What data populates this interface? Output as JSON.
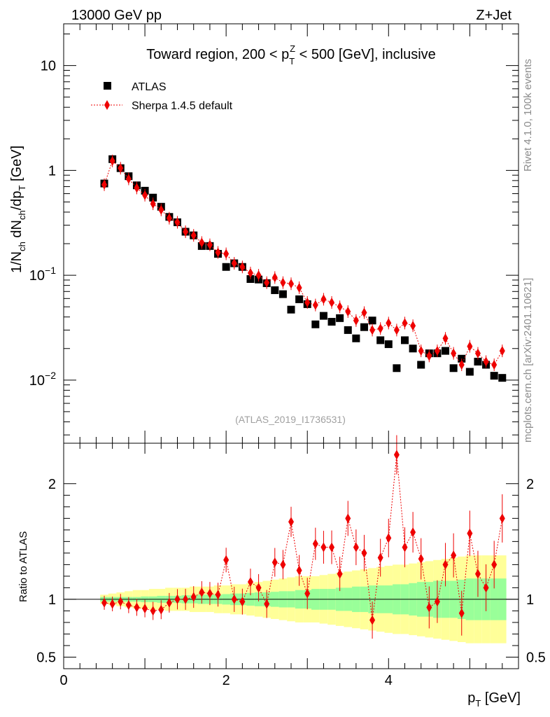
{
  "header": {
    "energy_label": "13000 GeV pp",
    "process_label": "Z+Jet",
    "analysis_id": "(ATLAS_2019_I1736531)",
    "rivet_label": "Rivet 4.1.0,  100k events",
    "mcplots_label": "mcplots.cern.ch [arXiv:2401.10621]"
  },
  "chart_data": [
    {
      "type": "scatter",
      "title": "Toward region, 200 < p_T^Z < 500 [GeV], inclusive",
      "title_parts": {
        "pre": "Toward region, 200 < p",
        "sub": "T",
        "sup": "Z",
        "post": " < 500 [GeV], inclusive"
      },
      "ylabel": "1/N_ch dN_ch/dp_T [GeV]",
      "ylabel_parts": {
        "a": "1/N",
        "a_sub": "ch",
        "b": " dN",
        "b_sub": "ch",
        "c": "/dp",
        "c_sub": "T",
        "d": " [GeV]"
      },
      "yscale": "log",
      "ylim": [
        0.0025,
        25
      ],
      "xlim": [
        0,
        5.6
      ],
      "yticks": [
        {
          "value": 10,
          "label": "10"
        },
        {
          "value": 1,
          "label": "1"
        },
        {
          "value": 0.1,
          "label": "10",
          "exp": "−1"
        },
        {
          "value": 0.01,
          "label": "10",
          "exp": "−2"
        }
      ],
      "legend": {
        "position": "top-left",
        "entries": [
          {
            "name": "ATLAS",
            "marker": "square",
            "color": "#000000"
          },
          {
            "name": "Sherpa 1.4.5 default",
            "marker": "diamond",
            "color": "#ee0000"
          }
        ]
      },
      "x": [
        0.5,
        0.6,
        0.7,
        0.8,
        0.9,
        1.0,
        1.1,
        1.2,
        1.3,
        1.4,
        1.5,
        1.6,
        1.7,
        1.8,
        1.9,
        2.0,
        2.1,
        2.2,
        2.3,
        2.4,
        2.5,
        2.6,
        2.7,
        2.8,
        2.9,
        3.0,
        3.1,
        3.2,
        3.3,
        3.4,
        3.5,
        3.6,
        3.7,
        3.8,
        3.9,
        4.0,
        4.1,
        4.2,
        4.3,
        4.4,
        4.5,
        4.6,
        4.7,
        4.8,
        4.9,
        5.0,
        5.1,
        5.2,
        5.3,
        5.4
      ],
      "series": [
        {
          "name": "ATLAS",
          "values": [
            0.75,
            1.28,
            1.05,
            0.88,
            0.72,
            0.64,
            0.55,
            0.45,
            0.36,
            0.32,
            0.26,
            0.24,
            0.19,
            0.19,
            0.16,
            0.12,
            0.13,
            0.12,
            0.092,
            0.091,
            0.084,
            0.072,
            0.066,
            0.047,
            0.059,
            0.053,
            0.034,
            0.041,
            0.036,
            0.039,
            0.03,
            0.025,
            0.032,
            0.037,
            0.024,
            0.022,
            0.013,
            0.024,
            0.02,
            0.014,
            0.018,
            0.018,
            0.019,
            0.013,
            0.016,
            0.012,
            0.015,
            0.014,
            0.011,
            0.0105
          ]
        },
        {
          "name": "Sherpa 1.4.5 default",
          "values": [
            0.73,
            1.23,
            1.05,
            0.83,
            0.68,
            0.58,
            0.48,
            0.42,
            0.35,
            0.32,
            0.26,
            0.24,
            0.205,
            0.195,
            0.165,
            0.16,
            0.13,
            0.12,
            0.105,
            0.1,
            0.085,
            0.095,
            0.085,
            0.083,
            0.076,
            0.055,
            0.052,
            0.059,
            0.055,
            0.05,
            0.045,
            0.037,
            0.044,
            0.03,
            0.031,
            0.035,
            0.03,
            0.035,
            0.033,
            0.019,
            0.017,
            0.019,
            0.025,
            0.018,
            0.014,
            0.021,
            0.018,
            0.015,
            0.014,
            0.019
          ]
        }
      ]
    },
    {
      "type": "line",
      "title": "",
      "xlabel": "p_T [GeV]",
      "xlabel_parts": {
        "a": "p",
        "a_sub": "T",
        "b": " [GeV]"
      },
      "ylabel": "Ratio to ATLAS",
      "ylim": [
        0.4,
        2.35
      ],
      "xlim": [
        0,
        5.6
      ],
      "xticks": [
        0,
        2,
        4
      ],
      "yticks": [
        0.5,
        1,
        2
      ],
      "reference_line": 1,
      "bins_lower": [
        0.45,
        0.55,
        0.65,
        0.75,
        0.85,
        0.95,
        1.05,
        1.15,
        1.25,
        1.35,
        1.45,
        1.55,
        1.65,
        1.75,
        1.85,
        1.95,
        2.05,
        2.15,
        2.25,
        2.35,
        2.45,
        2.55,
        2.65,
        2.75,
        2.85,
        2.95,
        3.05,
        3.15,
        3.25,
        3.35,
        3.45,
        3.55,
        3.65,
        3.75,
        3.85,
        3.95,
        4.05,
        4.15,
        4.25,
        4.35,
        4.45,
        4.55,
        4.65,
        4.75,
        4.85,
        4.95,
        5.05,
        5.15,
        5.25,
        5.35
      ],
      "bins_upper": [
        0.55,
        0.65,
        0.75,
        0.85,
        0.95,
        1.05,
        1.15,
        1.25,
        1.35,
        1.45,
        1.55,
        1.65,
        1.75,
        1.85,
        1.95,
        2.05,
        2.15,
        2.25,
        2.35,
        2.45,
        2.55,
        2.65,
        2.75,
        2.85,
        2.95,
        3.05,
        3.15,
        3.25,
        3.35,
        3.45,
        3.55,
        3.65,
        3.75,
        3.85,
        3.95,
        4.05,
        4.15,
        4.25,
        4.35,
        4.45,
        4.55,
        4.65,
        4.75,
        4.85,
        4.95,
        5.05,
        5.15,
        5.25,
        5.35,
        5.45
      ],
      "stat_band_half": [
        0.02,
        0.02,
        0.02,
        0.02,
        0.02,
        0.025,
        0.025,
        0.03,
        0.03,
        0.03,
        0.035,
        0.035,
        0.04,
        0.04,
        0.04,
        0.045,
        0.05,
        0.05,
        0.055,
        0.06,
        0.06,
        0.065,
        0.07,
        0.07,
        0.08,
        0.08,
        0.09,
        0.09,
        0.09,
        0.1,
        0.1,
        0.11,
        0.11,
        0.12,
        0.12,
        0.12,
        0.13,
        0.13,
        0.14,
        0.15,
        0.15,
        0.16,
        0.16,
        0.16,
        0.17,
        0.18,
        0.18,
        0.18,
        0.18,
        0.18
      ],
      "total_band_half": [
        0.04,
        0.05,
        0.06,
        0.07,
        0.08,
        0.08,
        0.09,
        0.09,
        0.1,
        0.1,
        0.1,
        0.11,
        0.11,
        0.11,
        0.12,
        0.12,
        0.13,
        0.13,
        0.14,
        0.15,
        0.16,
        0.17,
        0.18,
        0.19,
        0.2,
        0.2,
        0.2,
        0.21,
        0.22,
        0.23,
        0.24,
        0.25,
        0.26,
        0.27,
        0.28,
        0.29,
        0.3,
        0.3,
        0.31,
        0.32,
        0.33,
        0.34,
        0.35,
        0.36,
        0.37,
        0.38,
        0.38,
        0.38,
        0.38,
        0.38
      ],
      "series": [
        {
          "name": "Sherpa 1.4.5 default",
          "values": [
            0.97,
            0.96,
            0.98,
            0.95,
            0.93,
            0.92,
            0.9,
            0.91,
            0.97,
            1.0,
            1.0,
            1.02,
            1.06,
            1.05,
            1.04,
            1.34,
            1.0,
            0.98,
            1.15,
            1.1,
            0.96,
            1.32,
            1.3,
            1.67,
            1.25,
            1.05,
            1.48,
            1.45,
            1.45,
            1.22,
            1.7,
            1.45,
            1.4,
            0.82,
            1.36,
            1.53,
            2.25,
            1.45,
            1.58,
            1.35,
            0.93,
            0.98,
            1.3,
            1.38,
            0.88,
            1.57,
            1.22,
            1.1,
            1.3,
            1.7
          ]
        }
      ]
    }
  ]
}
